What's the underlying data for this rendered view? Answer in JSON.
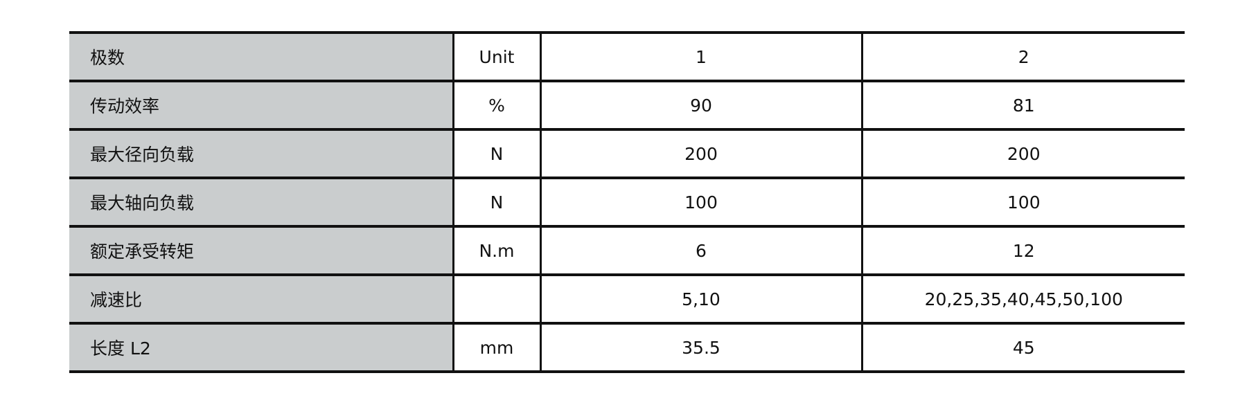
{
  "table": {
    "rows": [
      {
        "label": "极数",
        "unit": "Unit",
        "v1": "1",
        "v2": "2"
      },
      {
        "label": "传动效率",
        "unit": "%",
        "v1": "90",
        "v2": "81"
      },
      {
        "label": "最大径向负载",
        "unit": "N",
        "v1": "200",
        "v2": "200"
      },
      {
        "label": "最大轴向负载",
        "unit": "N",
        "v1": "100",
        "v2": "100"
      },
      {
        "label": "额定承受转矩",
        "unit": "N.m",
        "v1": "6",
        "v2": "12"
      },
      {
        "label": "减速比",
        "unit": "",
        "v1": "5,10",
        "v2": "20,25,35,40,45,50,100"
      },
      {
        "label": "长度 L2",
        "unit": "mm",
        "v1": "35.5",
        "v2": "45"
      }
    ]
  },
  "colors": {
    "label_background": "#cacdce",
    "border": "#111111"
  }
}
